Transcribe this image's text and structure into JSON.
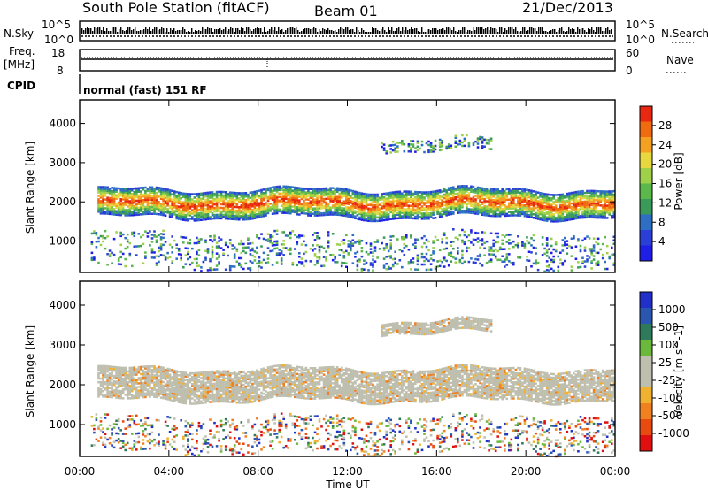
{
  "header": {
    "station": "South Pole Station (fitACF)",
    "beam": "Beam 01",
    "date": "21/Dec/2013"
  },
  "panels": {
    "nsky": {
      "label": "N.Sky",
      "tick_top": "10^5",
      "tick_bottom": "10^0",
      "right_label": "N.Search",
      "right_tick_top": "10^5",
      "right_tick_bottom": "10^0"
    },
    "freq": {
      "label_line1": "Freq.",
      "label_line2": "[MHz]",
      "tick_top": "18",
      "tick_bottom": "8",
      "right_label": "Nave",
      "right_tick_top": "60",
      "right_tick_bottom": "0"
    },
    "cpid": {
      "label": "CPID",
      "value": "normal (fast) 151 RF"
    }
  },
  "colors": {
    "power_scale": [
      "#1e1ee6",
      "#2a3fd6",
      "#2e6fc4",
      "#3a9a5a",
      "#5cb84a",
      "#9fd04a",
      "#e8d840",
      "#f4a020",
      "#f06a10",
      "#e82810"
    ],
    "velocity_scale": [
      "#2030c8",
      "#2a56b0",
      "#2e7a5a",
      "#6ab83c",
      "#bfbfb0",
      "#bfbfb0",
      "#f0b030",
      "#f08020",
      "#e84a10",
      "#e01010"
    ]
  },
  "chart_data": [
    {
      "type": "heatmap",
      "name": "power",
      "xlabel": "",
      "ylabel": "Slant Range [km]",
      "x_ticks": [
        "00:00",
        "04:00",
        "08:00",
        "12:00",
        "16:00",
        "20:00",
        "00:00"
      ],
      "y_ticks": [
        1000,
        2000,
        3000,
        4000
      ],
      "ylim": [
        200,
        4600
      ],
      "colorbar": {
        "label": "Power [dB]",
        "ticks": [
          4,
          8,
          12,
          16,
          20,
          24,
          28
        ]
      },
      "bands": [
        {
          "t_start": 0.8,
          "t_end": 24.0,
          "range_km": [
            1600,
            2300
          ],
          "level": "high"
        },
        {
          "t_start": 0.5,
          "t_end": 24.0,
          "range_km": [
            300,
            1200
          ],
          "level": "mixed"
        },
        {
          "t_start": 13.5,
          "t_end": 18.5,
          "range_km": [
            3300,
            3600
          ],
          "level": "low"
        }
      ]
    },
    {
      "type": "heatmap",
      "name": "velocity",
      "xlabel": "Time UT",
      "ylabel": "Slant Range [km]",
      "x_ticks": [
        "00:00",
        "04:00",
        "08:00",
        "12:00",
        "16:00",
        "20:00",
        "00:00"
      ],
      "y_ticks": [
        1000,
        2000,
        3000,
        4000
      ],
      "ylim": [
        200,
        4600
      ],
      "colorbar": {
        "label": "Velocity [m s^-1]",
        "ticks": [
          1000,
          500,
          100,
          25,
          -25,
          -100,
          -500,
          -1000
        ]
      },
      "bands": [
        {
          "t_start": 0.8,
          "t_end": 24.0,
          "range_km": [
            1600,
            2400
          ],
          "level": "near-zero"
        },
        {
          "t_start": 0.5,
          "t_end": 24.0,
          "range_km": [
            300,
            1200
          ],
          "level": "mixed"
        },
        {
          "t_start": 13.5,
          "t_end": 18.5,
          "range_km": [
            3300,
            3600
          ],
          "level": "near-zero"
        }
      ]
    }
  ]
}
